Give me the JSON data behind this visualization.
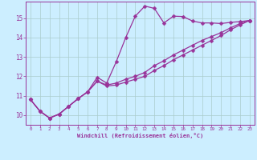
{
  "xlabel": "Windchill (Refroidissement éolien,°C)",
  "xlim": [
    -0.5,
    23.5
  ],
  "ylim": [
    9.5,
    15.85
  ],
  "xtick_vals": [
    0,
    1,
    2,
    3,
    4,
    5,
    6,
    7,
    8,
    9,
    10,
    11,
    12,
    13,
    14,
    15,
    16,
    17,
    18,
    19,
    20,
    21,
    22,
    23
  ],
  "xtick_labels": [
    "0",
    "1",
    "2",
    "3",
    "4",
    "5",
    "6",
    "7",
    "8",
    "9",
    "10",
    "11",
    "12",
    "13",
    "14",
    "15",
    "16",
    "17",
    "18",
    "19",
    "20",
    "21",
    "22",
    "23"
  ],
  "ytick_vals": [
    10,
    11,
    12,
    13,
    14,
    15
  ],
  "ytick_labels": [
    "10",
    "11",
    "12",
    "13",
    "14",
    "15"
  ],
  "background_color": "#cceeff",
  "grid_color": "#aacccc",
  "line_color": "#993399",
  "line1_x": [
    0,
    1,
    2,
    3,
    4,
    5,
    6,
    7,
    8,
    9,
    10,
    11,
    12,
    13,
    14,
    15,
    16,
    17,
    18,
    19,
    20,
    21,
    22,
    23
  ],
  "line1_y": [
    10.8,
    10.2,
    9.85,
    10.05,
    10.45,
    10.85,
    11.2,
    11.95,
    11.65,
    12.75,
    14.0,
    15.1,
    15.62,
    15.5,
    14.75,
    15.1,
    15.08,
    14.85,
    14.75,
    14.75,
    14.72,
    14.78,
    14.82,
    14.88
  ],
  "line2_x": [
    0,
    1,
    2,
    3,
    4,
    5,
    6,
    7,
    8,
    9,
    10,
    11,
    12,
    13,
    14,
    15,
    16,
    17,
    18,
    19,
    20,
    21,
    22,
    23
  ],
  "line2_y": [
    10.8,
    10.2,
    9.85,
    10.05,
    10.45,
    10.85,
    11.2,
    11.75,
    11.55,
    11.65,
    11.85,
    12.0,
    12.2,
    12.55,
    12.8,
    13.1,
    13.35,
    13.6,
    13.85,
    14.05,
    14.25,
    14.5,
    14.72,
    14.88
  ],
  "line3_x": [
    0,
    1,
    2,
    3,
    4,
    5,
    6,
    7,
    8,
    9,
    10,
    11,
    12,
    13,
    14,
    15,
    16,
    17,
    18,
    19,
    20,
    21,
    22,
    23
  ],
  "line3_y": [
    10.8,
    10.2,
    9.85,
    10.05,
    10.45,
    10.85,
    11.2,
    11.75,
    11.5,
    11.55,
    11.7,
    11.85,
    12.0,
    12.3,
    12.55,
    12.85,
    13.1,
    13.35,
    13.6,
    13.85,
    14.1,
    14.4,
    14.65,
    14.88
  ],
  "figsize": [
    3.2,
    2.0
  ],
  "dpi": 100
}
